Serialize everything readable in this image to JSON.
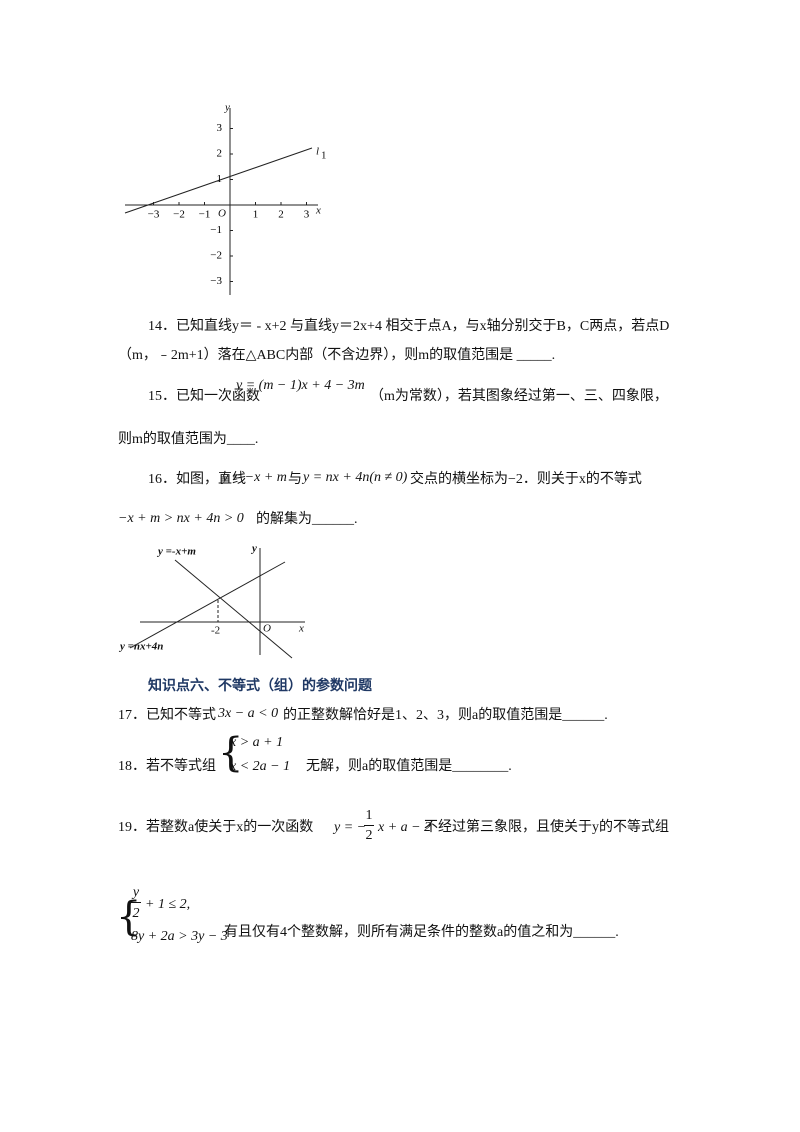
{
  "figure1": {
    "y_axis": "y",
    "x_axis": "x",
    "origin": "O",
    "line_label": "l",
    "line_label_sub": "1",
    "x_ticks": [
      "−3",
      "−2",
      "−1",
      "1",
      "2",
      "3"
    ],
    "y_ticks": [
      "3",
      "2",
      "1",
      "−1",
      "−2",
      "−3"
    ]
  },
  "q14": {
    "lines": [
      "14．已知直线y＝ - x+2 与直线y＝2x+4 相交于点A，与x轴分别交于B，C两点，若点D",
      "（m，﹣2m+1）落在△ABC内部（不含边界），则m的取值范围是 _____."
    ]
  },
  "q15": {
    "lines": [
      "15．已知一次函数",
      "y = (m − 1)x + 4 − 3m",
      "（m为常数），若其图象经过第一、三、四象限，",
      "则m的取值范围为____."
    ]
  },
  "q16": {
    "lines": [
      "16．如图，直线",
      "y = −x + m",
      "与",
      "y = nx + 4n(n ≠ 0)",
      "交点的横坐标为−2．则关于x的不等式",
      "−x + m > nx + 4n > 0",
      "的解集为______."
    ]
  },
  "figure2": {
    "line1_label": "y =-x+m",
    "line2_label": "y =nx+4n",
    "y_axis": "y",
    "x_axis": "x",
    "origin": "O",
    "point_label": "-2"
  },
  "section": {
    "title": "知识点六、不等式（组）的参数问题"
  },
  "q17": {
    "lines": [
      "17．已知不等式",
      "3x − a < 0",
      "的正整数解恰好是1、2、3，则a的取值范围是______."
    ]
  },
  "q18": {
    "prefix": "18．若不等式组",
    "system": [
      "x > a + 1",
      "x < 2a − 1"
    ],
    "suffix": "无解，则a的取值范围是________."
  },
  "q19": {
    "prefix": "19．若整数a使关于x的一次函数",
    "formula_pre": "y = −",
    "frac_num": "1",
    "frac_den": "2",
    "formula_post": "x + a − 2",
    "suffix": "不经过第三象限，且使关于y的不等式组",
    "sys_num": "y",
    "sys_den": "2",
    "sys_row1_post": "+ 1 ≤ 2,",
    "sys_row2": "8y + 2a > 3y − 3",
    "tail": "有且仅有4个整数解，则所有满足条件的整数a的值之和为______."
  }
}
